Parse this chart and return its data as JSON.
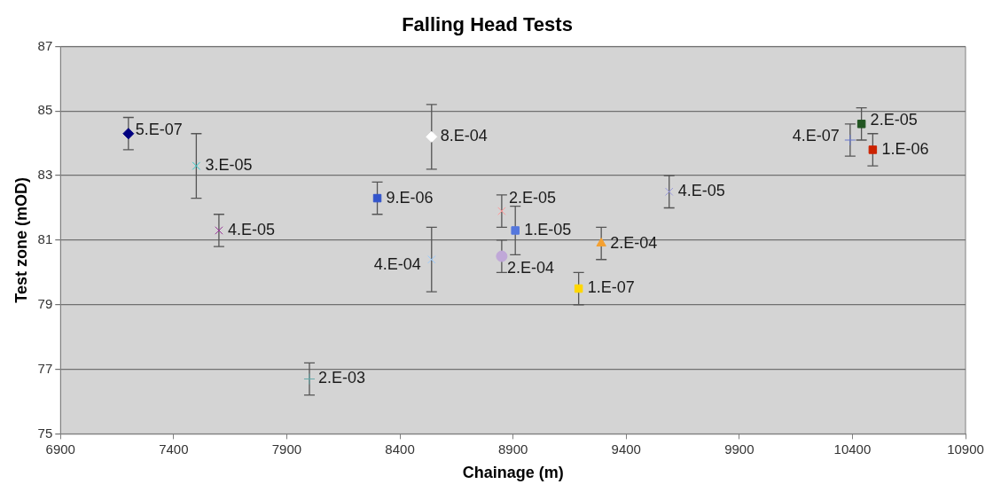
{
  "chart_data": {
    "type": "scatter",
    "title": "Falling Head Tests",
    "xlabel": "Chainage (m)",
    "ylabel": "Test zone (mOD)",
    "xlim": [
      6900,
      10900
    ],
    "xticks": [
      6900,
      7400,
      7900,
      8400,
      8900,
      9400,
      9900,
      10400,
      10900
    ],
    "ylim": [
      75,
      87
    ],
    "yticks": [
      75,
      77,
      79,
      81,
      83,
      85,
      87
    ],
    "grid": "y",
    "legend": false,
    "series": [
      {
        "color": "#000080",
        "marker": "diamond",
        "x": [
          7200
        ],
        "values": [
          84.3
        ],
        "errors": [
          0.5
        ],
        "value_labels": [
          "5.E-07"
        ]
      },
      {
        "color": "#33cccc",
        "marker": "cross",
        "x": [
          7500
        ],
        "values": [
          83.3
        ],
        "errors": [
          1
        ],
        "value_labels": [
          "3.E-05"
        ]
      },
      {
        "color": "#993399",
        "marker": "cross",
        "x": [
          7600
        ],
        "values": [
          81.3
        ],
        "errors": [
          0.5
        ],
        "value_labels": [
          "4.E-05"
        ]
      },
      {
        "color": "#66aaaa",
        "marker": "plus",
        "x": [
          8000
        ],
        "values": [
          76.7
        ],
        "errors": [
          0.5
        ],
        "value_labels": [
          "2.E-03"
        ]
      },
      {
        "color": "#3355cc",
        "marker": "square",
        "x": [
          8300
        ],
        "values": [
          82.3
        ],
        "errors": [
          0.5
        ],
        "value_labels": [
          "9.E-06"
        ]
      },
      {
        "color": "#ffffff",
        "marker": "diamond",
        "x": [
          8540
        ],
        "values": [
          84.2
        ],
        "errors": [
          1
        ],
        "value_labels": [
          "8.E-04"
        ]
      },
      {
        "color": "#99ccff",
        "marker": "cross",
        "x": [
          8540
        ],
        "values": [
          80.4
        ],
        "errors": [
          1
        ],
        "value_labels": [
          "4.E-04"
        ]
      },
      {
        "color": "#ff9999",
        "marker": "cross",
        "x": [
          8850
        ],
        "values": [
          81.9
        ],
        "errors": [
          0.5
        ],
        "value_labels": [
          "2.E-05"
        ]
      },
      {
        "color": "#c0a8d8",
        "marker": "circle",
        "x": [
          8850
        ],
        "values": [
          80.5
        ],
        "errors": [
          0.5
        ],
        "value_labels": [
          "2.E-04"
        ]
      },
      {
        "color": "#5577dd",
        "marker": "square",
        "x": [
          8910
        ],
        "values": [
          81.3
        ],
        "errors": [
          0.75
        ],
        "value_labels": [
          "1.E-05"
        ]
      },
      {
        "color": "#f4a030",
        "marker": "triangle",
        "x": [
          9290
        ],
        "values": [
          80.9
        ],
        "errors": [
          0.5
        ],
        "value_labels": [
          "2.E-04"
        ]
      },
      {
        "color": "#ffd700",
        "marker": "square",
        "x": [
          9190
        ],
        "values": [
          79.5
        ],
        "errors": [
          0.5
        ],
        "value_labels": [
          "1.E-07"
        ]
      },
      {
        "color": "#9999dd",
        "marker": "cross",
        "x": [
          9590
        ],
        "values": [
          82.5
        ],
        "errors": [
          0.5
        ],
        "value_labels": [
          "4.E-05"
        ]
      },
      {
        "color": "#6677cc",
        "marker": "plus",
        "x": [
          10390
        ],
        "values": [
          84.1
        ],
        "errors": [
          0.5
        ],
        "value_labels": [
          "4.E-07"
        ]
      },
      {
        "color": "#225522",
        "marker": "square",
        "x": [
          10440
        ],
        "values": [
          84.6
        ],
        "errors": [
          0.5
        ],
        "value_labels": [
          "2.E-05"
        ]
      },
      {
        "color": "#cc2200",
        "marker": "square",
        "x": [
          10490
        ],
        "values": [
          83.8
        ],
        "errors": [
          0.5
        ],
        "value_labels": [
          "1.E-06"
        ]
      }
    ]
  }
}
